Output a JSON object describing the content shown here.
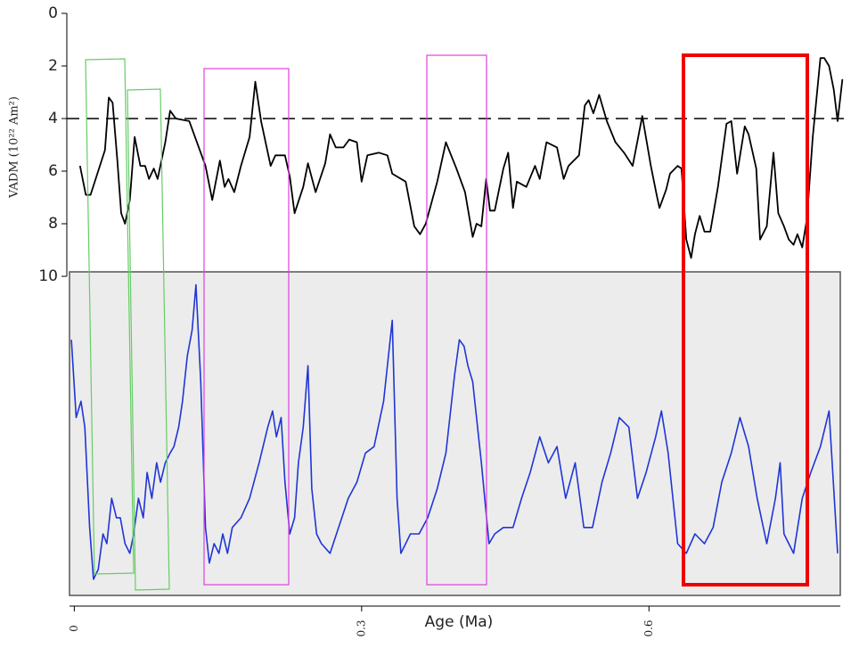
{
  "chart_data": [
    {
      "type": "line",
      "y_label": "VADM (10²² Am²)",
      "ylim": [
        10,
        0
      ],
      "yticks": [
        0,
        2,
        4,
        6,
        8,
        10
      ],
      "xlim": [
        -0.005,
        0.81
      ],
      "reference_line": 4,
      "series": [
        {
          "color": "#000000",
          "x": [
            0.006,
            0.012,
            0.017,
            0.032,
            0.036,
            0.04,
            0.045,
            0.049,
            0.053,
            0.058,
            0.063,
            0.069,
            0.074,
            0.078,
            0.083,
            0.087,
            0.095,
            0.1,
            0.106,
            0.12,
            0.137,
            0.144,
            0.152,
            0.157,
            0.161,
            0.167,
            0.174,
            0.183,
            0.189,
            0.195,
            0.205,
            0.21,
            0.22,
            0.225,
            0.23,
            0.239,
            0.244,
            0.252,
            0.262,
            0.267,
            0.273,
            0.281,
            0.287,
            0.295,
            0.3,
            0.306,
            0.318,
            0.327,
            0.332,
            0.346,
            0.355,
            0.361,
            0.367,
            0.379,
            0.388,
            0.399,
            0.408,
            0.416,
            0.42,
            0.425,
            0.43,
            0.434,
            0.439,
            0.448,
            0.453,
            0.458,
            0.462,
            0.472,
            0.481,
            0.486,
            0.493,
            0.504,
            0.511,
            0.516,
            0.527,
            0.533,
            0.537,
            0.542,
            0.548,
            0.556,
            0.565,
            0.574,
            0.583,
            0.593,
            0.602,
            0.608,
            0.611,
            0.618,
            0.622,
            0.63,
            0.634,
            0.639,
            0.644,
            0.648,
            0.653,
            0.658,
            0.664,
            0.672,
            0.681,
            0.686,
            0.692,
            0.7,
            0.704,
            0.712,
            0.716,
            0.723,
            0.73,
            0.735,
            0.741,
            0.746,
            0.751,
            0.755,
            0.76,
            0.765,
            0.771,
            0.779,
            0.783,
            0.788,
            0.793,
            0.797,
            0.802
          ],
          "values": [
            5.8,
            6.9,
            6.9,
            5.2,
            3.2,
            3.4,
            5.6,
            7.6,
            8.0,
            7.1,
            4.7,
            5.8,
            5.8,
            6.3,
            5.9,
            6.3,
            4.9,
            3.7,
            4.0,
            4.1,
            5.8,
            7.1,
            5.6,
            6.6,
            6.3,
            6.8,
            5.8,
            4.7,
            2.6,
            4.1,
            5.8,
            5.4,
            5.4,
            6.2,
            7.6,
            6.6,
            5.7,
            6.8,
            5.7,
            4.6,
            5.1,
            5.1,
            4.8,
            4.9,
            6.4,
            5.4,
            5.3,
            5.4,
            6.1,
            6.4,
            8.1,
            8.4,
            8.0,
            6.4,
            4.9,
            5.9,
            6.8,
            8.5,
            8.0,
            8.1,
            6.3,
            7.5,
            7.5,
            5.9,
            5.3,
            7.4,
            6.4,
            6.6,
            5.8,
            6.3,
            4.9,
            5.1,
            6.3,
            5.8,
            5.4,
            3.5,
            3.3,
            3.8,
            3.1,
            4.1,
            4.9,
            5.3,
            5.8,
            3.9,
            5.8,
            6.9,
            7.4,
            6.7,
            6.1,
            5.8,
            5.9,
            8.6,
            9.3,
            8.4,
            7.7,
            8.3,
            8.3,
            6.6,
            4.2,
            4.1,
            6.1,
            4.3,
            4.6,
            5.9,
            8.6,
            8.1,
            5.3,
            7.6,
            8.1,
            8.6,
            8.8,
            8.4,
            8.9,
            7.8,
            4.7,
            1.7,
            1.7,
            2.0,
            2.9,
            4.1,
            2.5
          ]
        }
      ]
    },
    {
      "type": "line",
      "x_label": "Age (Ma)",
      "ylim": [
        0,
        1
      ],
      "xlim": [
        -0.005,
        0.81
      ],
      "xticks": [
        0,
        0.3,
        0.6
      ],
      "series": [
        {
          "color": "#1f35d6",
          "x": [
            -0.003,
            0.002,
            0.007,
            0.011,
            0.016,
            0.02,
            0.025,
            0.03,
            0.034,
            0.039,
            0.044,
            0.048,
            0.053,
            0.058,
            0.062,
            0.067,
            0.072,
            0.076,
            0.081,
            0.086,
            0.09,
            0.095,
            0.1,
            0.104,
            0.109,
            0.113,
            0.118,
            0.123,
            0.127,
            0.132,
            0.137,
            0.141,
            0.146,
            0.151,
            0.155,
            0.16,
            0.165,
            0.174,
            0.183,
            0.193,
            0.202,
            0.207,
            0.211,
            0.216,
            0.22,
            0.225,
            0.23,
            0.234,
            0.239,
            0.244,
            0.248,
            0.253,
            0.258,
            0.267,
            0.276,
            0.286,
            0.295,
            0.304,
            0.313,
            0.323,
            0.332,
            0.337,
            0.341,
            0.351,
            0.36,
            0.369,
            0.379,
            0.388,
            0.397,
            0.402,
            0.407,
            0.411,
            0.416,
            0.425,
            0.433,
            0.439,
            0.448,
            0.458,
            0.467,
            0.476,
            0.486,
            0.495,
            0.504,
            0.513,
            0.523,
            0.532,
            0.541,
            0.551,
            0.56,
            0.569,
            0.579,
            0.588,
            0.597,
            0.607,
            0.613,
            0.62,
            0.63,
            0.639,
            0.648,
            0.658,
            0.667,
            0.676,
            0.686,
            0.695,
            0.704,
            0.713,
            0.723,
            0.732,
            0.737,
            0.741,
            0.751,
            0.76,
            0.769,
            0.779,
            0.788,
            0.797
          ],
          "values": [
            0.79,
            0.55,
            0.6,
            0.52,
            0.21,
            0.05,
            0.08,
            0.19,
            0.16,
            0.3,
            0.24,
            0.24,
            0.16,
            0.13,
            0.19,
            0.3,
            0.24,
            0.38,
            0.3,
            0.41,
            0.35,
            0.41,
            0.44,
            0.46,
            0.52,
            0.6,
            0.74,
            0.82,
            0.96,
            0.66,
            0.21,
            0.1,
            0.16,
            0.13,
            0.19,
            0.13,
            0.21,
            0.24,
            0.3,
            0.41,
            0.52,
            0.57,
            0.49,
            0.55,
            0.35,
            0.19,
            0.24,
            0.41,
            0.52,
            0.71,
            0.33,
            0.19,
            0.16,
            0.13,
            0.21,
            0.3,
            0.35,
            0.44,
            0.46,
            0.6,
            0.85,
            0.3,
            0.13,
            0.19,
            0.19,
            0.24,
            0.33,
            0.44,
            0.68,
            0.79,
            0.77,
            0.71,
            0.66,
            0.41,
            0.16,
            0.19,
            0.21,
            0.21,
            0.3,
            0.38,
            0.49,
            0.41,
            0.46,
            0.3,
            0.41,
            0.21,
            0.21,
            0.35,
            0.44,
            0.55,
            0.52,
            0.3,
            0.38,
            0.49,
            0.57,
            0.44,
            0.16,
            0.13,
            0.19,
            0.16,
            0.21,
            0.35,
            0.44,
            0.55,
            0.46,
            0.3,
            0.16,
            0.3,
            0.41,
            0.19,
            0.13,
            0.3,
            0.38,
            0.46,
            0.57,
            0.13
          ]
        }
      ]
    }
  ]
}
